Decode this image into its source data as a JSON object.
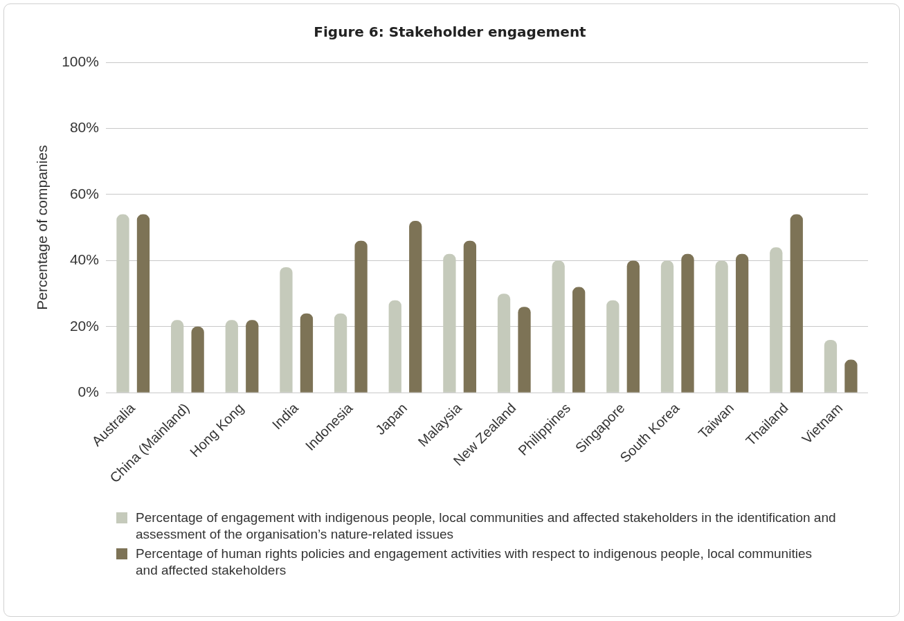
{
  "chart_data": {
    "type": "bar",
    "title": "Figure 6: Stakeholder engagement",
    "ylabel": "Percentage of companies",
    "categories": [
      "Australia",
      "China (Mainland)",
      "Hong Kong",
      "India",
      "Indonesia",
      "Japan",
      "Malaysia",
      "New Zealand",
      "Philippines",
      "Singapore",
      "South Korea",
      "Taiwan",
      "Thailand",
      "Vietnam"
    ],
    "series": [
      {
        "name": "Percentage of engagement with indigenous people, local communities and affected stakeholders in the identification and assessment of the organisation’s nature-related issues",
        "color": "#c5cabb",
        "values": [
          54,
          22,
          22,
          38,
          24,
          28,
          42,
          30,
          40,
          28,
          40,
          40,
          44,
          16
        ]
      },
      {
        "name": "Percentage of human rights policies and engagement activities with respect to indigenous people, local communities and affected stakeholders",
        "color": "#7d7356",
        "values": [
          54,
          20,
          22,
          24,
          46,
          52,
          46,
          26,
          32,
          40,
          42,
          42,
          54,
          10
        ]
      }
    ],
    "ylim": [
      0,
      100
    ],
    "yticks": [
      {
        "value": 0,
        "label": "0%"
      },
      {
        "value": 20,
        "label": "20%"
      },
      {
        "value": 40,
        "label": "40%"
      },
      {
        "value": 60,
        "label": "60%"
      },
      {
        "value": 80,
        "label": "80%"
      },
      {
        "value": 100,
        "label": "100%"
      }
    ],
    "grid": "y",
    "legend": "bottom"
  }
}
